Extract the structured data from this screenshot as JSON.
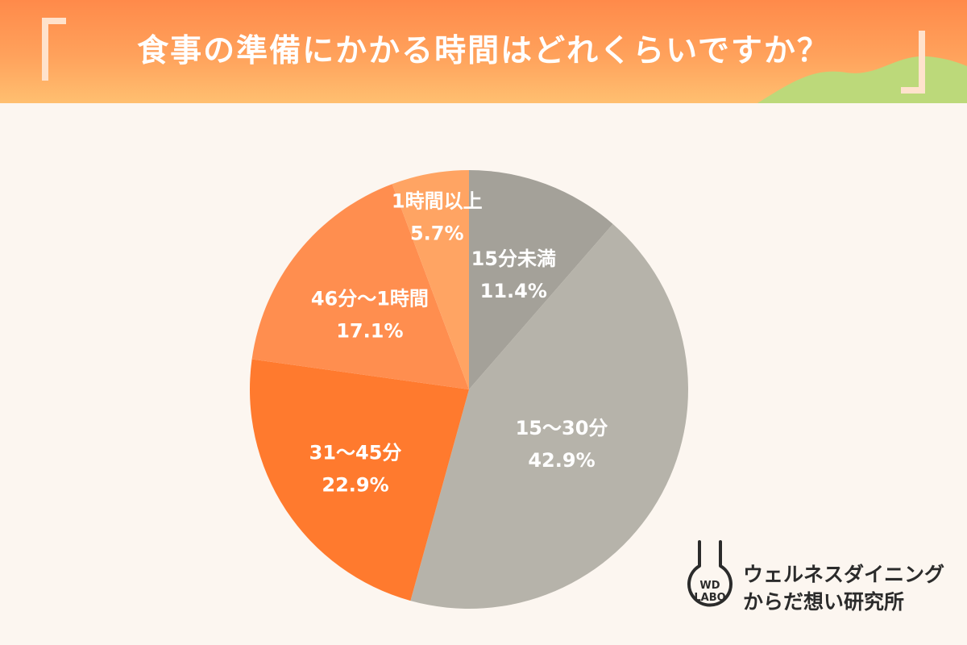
{
  "title": "食事の準備にかかる時間はどれくらいですか？",
  "colors": {
    "header_top": "#ff8a4a",
    "header_bottom": "#ffbf70",
    "background": "#fcf6f0",
    "hill": "#bcd97a"
  },
  "chart_data": {
    "type": "pie",
    "start_angle_deg": 0,
    "direction": "clockwise",
    "slices": [
      {
        "label": "15分未満",
        "value": 11.4,
        "value_label": "11.4%",
        "color": "#a4a199"
      },
      {
        "label": "15〜30分",
        "value": 42.9,
        "value_label": "42.9%",
        "color": "#b6b3aa"
      },
      {
        "label": "31〜45分",
        "value": 22.9,
        "value_label": "22.9%",
        "color": "#ff7a2e"
      },
      {
        "label": "46分〜1時間",
        "value": 17.1,
        "value_label": "17.1%",
        "color": "#ff8e4f"
      },
      {
        "label": "1時間以上",
        "value": 5.7,
        "value_label": "5.7%",
        "color": "#ffa463"
      }
    ]
  },
  "logo": {
    "mark_line1": "WD",
    "mark_line2": "LABO",
    "name_line1": "ウェルネスダイニング",
    "name_line2": "からだ想い研究所"
  }
}
